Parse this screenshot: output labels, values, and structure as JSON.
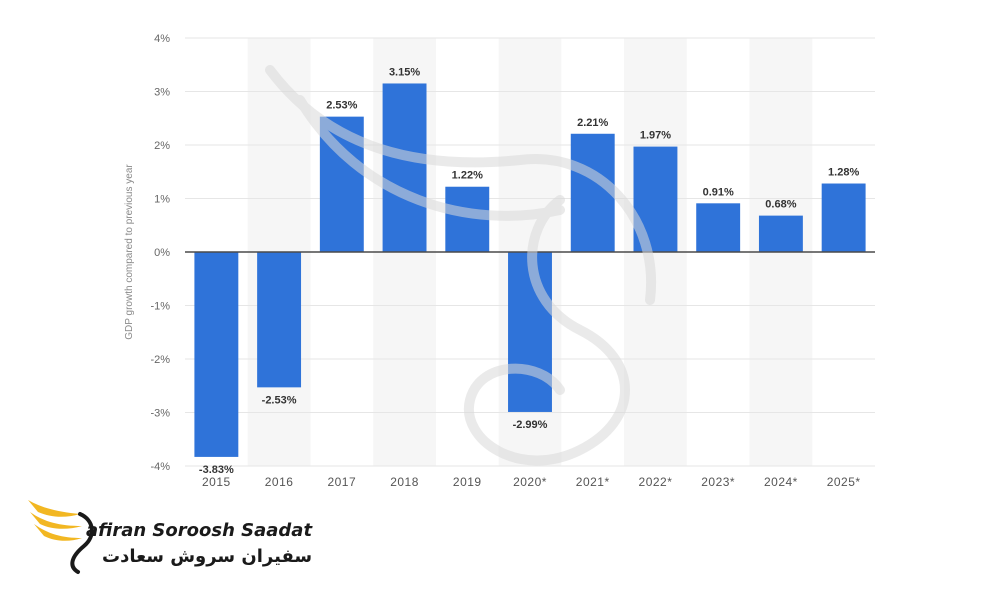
{
  "chart_data": {
    "type": "bar",
    "categories": [
      "2015",
      "2016",
      "2017",
      "2018",
      "2019",
      "2020*",
      "2021*",
      "2022*",
      "2023*",
      "2024*",
      "2025*"
    ],
    "values": [
      -3.83,
      -2.53,
      2.53,
      3.15,
      1.22,
      -2.99,
      2.21,
      1.97,
      0.91,
      0.68,
      1.28
    ],
    "data_labels": [
      "-3.83%",
      "-2.53%",
      "2.53%",
      "3.15%",
      "1.22%",
      "-2.99%",
      "2.21%",
      "1.97%",
      "0.91%",
      "0.68%",
      "1.28%"
    ],
    "ylabel": "GDP growth compared to previous year",
    "ylim": [
      -4,
      4
    ],
    "yticks": [
      "4%",
      "3%",
      "2%",
      "1%",
      "0%",
      "-1%",
      "-2%",
      "-3%",
      "-4%"
    ],
    "ytick_values": [
      4,
      3,
      2,
      1,
      0,
      -1,
      -2,
      -3,
      -4
    ],
    "grid": true,
    "bar_color": "#2f73d9",
    "band_color": "#f6f6f6",
    "gridline_color": "#e6e6e6",
    "zero_line_color": "#4a4a4a"
  },
  "logo": {
    "name_en": "afiran Soroosh Saadat",
    "name_fa": "سفیران سروش سعادت",
    "mark_icon": "swan-wing-icon",
    "mark_color": "#f2b722"
  },
  "watermark": {
    "icon": "swan-watermark-icon",
    "color": "#d9d9d9"
  }
}
